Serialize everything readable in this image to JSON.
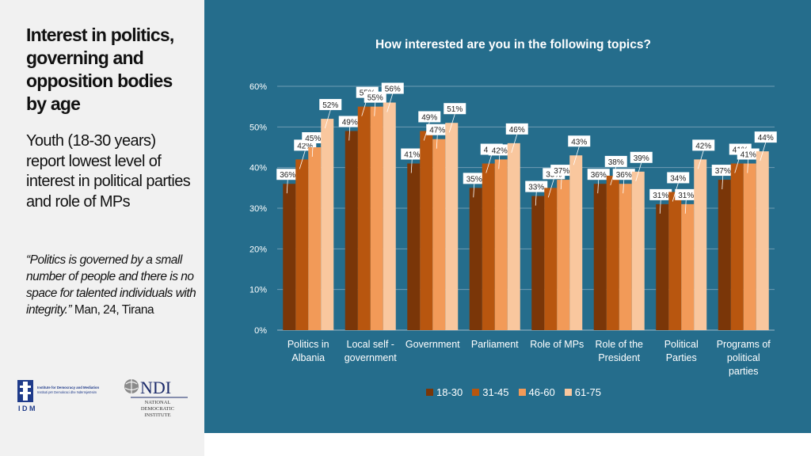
{
  "left_panel": {
    "title": "Interest in politics, governing and opposition bodies by age",
    "subtitle": "Youth (18-30 years) report lowest level of interest in political parties and role of MPs",
    "quote_text": "Politics is governed by a small number of people and there is no space for talented individuals with integrity.",
    "quote_attribution": "Man, 24, Tirana",
    "logos": [
      {
        "name": "IDM",
        "lines": [
          "Institute for Democracy and Mediation",
          "Instituti për Demokraci dhe Ndërmjetësim"
        ],
        "abbr": "I D M"
      },
      {
        "name": "NDI",
        "lines": [
          "NATIONAL",
          "DEMOCRATIC",
          "INSTITUTE"
        ],
        "abbr": "NDI"
      }
    ]
  },
  "colors": {
    "panel_bg": "#256d8c",
    "left_bg": "#f1f1f1"
  },
  "chart_data": {
    "type": "bar",
    "title": "How interested are you in the following topics?",
    "categories": [
      [
        "Politics in",
        "Albania"
      ],
      [
        "Local self -",
        "government"
      ],
      [
        "Government"
      ],
      [
        "Parliament"
      ],
      [
        "Role of MPs"
      ],
      [
        "Role of the",
        "President"
      ],
      [
        "Political",
        "Parties"
      ],
      [
        "Programs of",
        "political",
        "parties"
      ]
    ],
    "series": [
      {
        "name": "18-30",
        "color": "#7a3608",
        "values": [
          36,
          49,
          41,
          35,
          33,
          36,
          31,
          37
        ]
      },
      {
        "name": "31-45",
        "color": "#b8560f",
        "values": [
          42,
          55,
          49,
          41,
          35,
          38,
          34,
          41
        ]
      },
      {
        "name": "46-60",
        "color": "#f29a58",
        "values": [
          45,
          55,
          47,
          42,
          37,
          36,
          31,
          41
        ]
      },
      {
        "name": "61-75",
        "color": "#f9c79e",
        "values": [
          52,
          56,
          51,
          46,
          43,
          39,
          42,
          44
        ]
      }
    ],
    "labels": [
      [
        "36%",
        "42%",
        "45%",
        "52%"
      ],
      [
        "49%",
        "55%",
        "55%",
        "56%"
      ],
      [
        "41%",
        "49%",
        "47%",
        "51%"
      ],
      [
        "35%",
        "41%",
        "42%",
        "46%"
      ],
      [
        "33%",
        "35%",
        "37%",
        "43%"
      ],
      [
        "36%",
        "38%",
        "36%",
        "39%"
      ],
      [
        "31%",
        "34%",
        "31%",
        "42%"
      ],
      [
        "37%",
        "41%",
        "41%",
        "44%"
      ]
    ],
    "y_ticks": [
      "0%",
      "10%",
      "20%",
      "30%",
      "40%",
      "50%",
      "60%"
    ],
    "ylim": [
      0,
      60
    ],
    "grid": true,
    "legend_position": "bottom"
  }
}
